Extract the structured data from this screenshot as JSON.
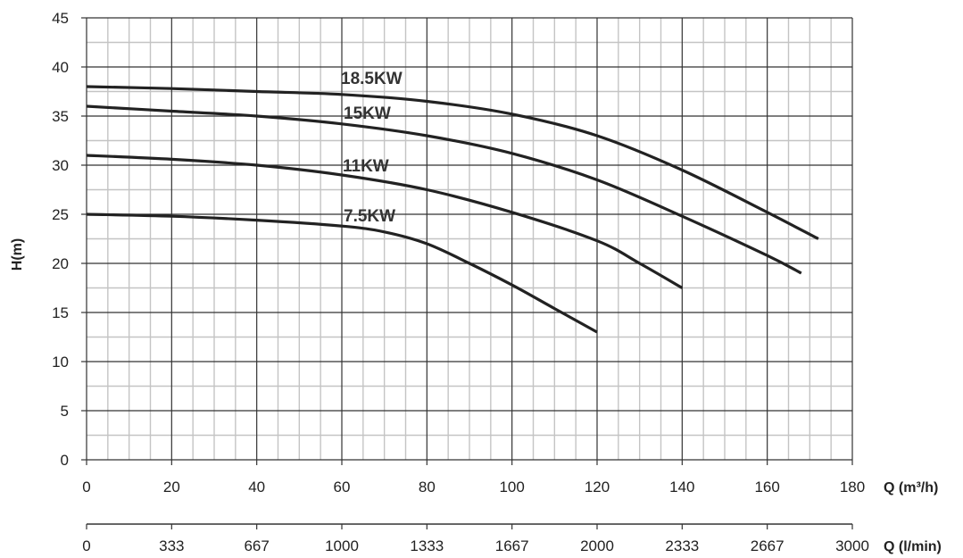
{
  "chart_data": {
    "type": "line",
    "xlabel": "Q (m³/h)",
    "x2label": "Q (l/min)",
    "ylabel": "H(m)",
    "xlim": [
      0,
      180
    ],
    "ylim": [
      0,
      45
    ],
    "x_ticks": [
      "0",
      "20",
      "40",
      "60",
      "80",
      "100",
      "120",
      "140",
      "160",
      "180"
    ],
    "x2_ticks": [
      "0",
      "333",
      "667",
      "1000",
      "1333",
      "1667",
      "2000",
      "2333",
      "2667",
      "3000"
    ],
    "y_ticks": [
      "0",
      "5",
      "10",
      "15",
      "20",
      "25",
      "30",
      "35",
      "40",
      "45"
    ],
    "grid": true,
    "series": [
      {
        "name": "18.5KW",
        "x": [
          0,
          20,
          40,
          60,
          80,
          100,
          120,
          140,
          160,
          172
        ],
        "y": [
          38,
          37.8,
          37.5,
          37.2,
          36.5,
          35.2,
          33,
          29.5,
          25.2,
          22.5
        ]
      },
      {
        "name": "15KW",
        "x": [
          0,
          20,
          40,
          60,
          80,
          100,
          120,
          140,
          160,
          168
        ],
        "y": [
          36,
          35.5,
          35,
          34.2,
          33,
          31.2,
          28.5,
          24.8,
          20.8,
          19
        ]
      },
      {
        "name": "11KW",
        "x": [
          0,
          20,
          40,
          60,
          80,
          100,
          120,
          130,
          140
        ],
        "y": [
          31,
          30.6,
          30,
          29,
          27.5,
          25.2,
          22.3,
          20,
          17.5
        ]
      },
      {
        "name": "7.5KW",
        "x": [
          0,
          20,
          40,
          60,
          70,
          80,
          90,
          100,
          110,
          120
        ],
        "y": [
          25,
          24.8,
          24.4,
          23.8,
          23.2,
          22,
          20,
          17.8,
          15.4,
          13
        ]
      }
    ]
  }
}
